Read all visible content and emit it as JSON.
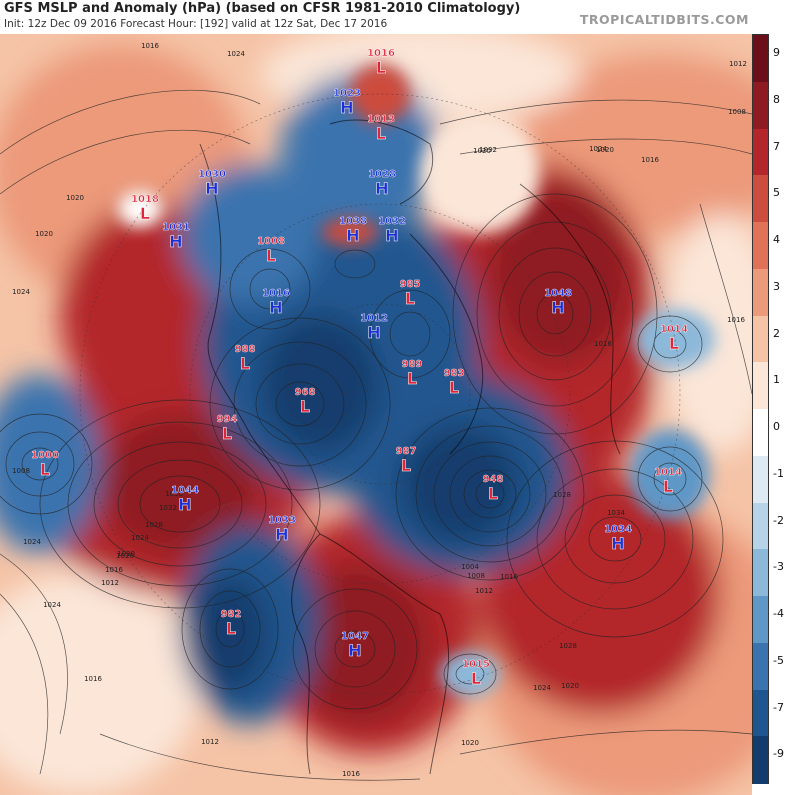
{
  "header": {
    "title": "GFS MSLP and Anomaly (hPa) (based on CFSR 1981-2010 Climatology)",
    "subtitle": "Init: 12z Dec 09 2016   Forecast Hour: [192]   valid at 12z Sat, Dec 17 2016",
    "brand": "TROPICALTIDBITS.COM"
  },
  "colorbar": {
    "labels": [
      "9",
      "8",
      "7",
      "5",
      "4",
      "3",
      "2",
      "1",
      "0",
      "-1",
      "-2",
      "-3",
      "-4",
      "-5",
      "-7",
      "-9"
    ],
    "colors": [
      "#6b0f1a",
      "#8e1a22",
      "#b3262b",
      "#cc4c3e",
      "#df7257",
      "#ec9a7a",
      "#f5c3a6",
      "#fbe6d8",
      "#ffffff",
      "#dde9f3",
      "#b7d3e8",
      "#8cb8d9",
      "#5f97c7",
      "#3a73ae",
      "#20568f",
      "#123c6d"
    ]
  },
  "pressure_centers": [
    {
      "type": "H",
      "value": "1023",
      "color": "#1c2fd6"
    },
    {
      "type": "L",
      "value": "1016",
      "color": "#e0253a"
    },
    {
      "type": "L",
      "value": "1013",
      "color": "#e0253a"
    },
    {
      "type": "H",
      "value": "1030",
      "color": "#1c2fd6"
    },
    {
      "type": "H",
      "value": "1028",
      "color": "#1c2fd6"
    },
    {
      "type": "L",
      "value": "1018",
      "color": "#e0253a"
    },
    {
      "type": "H",
      "value": "1031",
      "color": "#1c2fd6"
    },
    {
      "type": "L",
      "value": "1008",
      "color": "#e0253a"
    },
    {
      "type": "H",
      "value": "1038",
      "color": "#1c2fd6"
    },
    {
      "type": "H",
      "value": "1032",
      "color": "#1c2fd6"
    },
    {
      "type": "H",
      "value": "1016",
      "color": "#1c2fd6"
    },
    {
      "type": "L",
      "value": "985",
      "color": "#e0253a"
    },
    {
      "type": "H",
      "value": "1048",
      "color": "#1c2fd6"
    },
    {
      "type": "H",
      "value": "1012",
      "color": "#1c2fd6"
    },
    {
      "type": "L",
      "value": "988",
      "color": "#e0253a"
    },
    {
      "type": "L",
      "value": "989",
      "color": "#e0253a"
    },
    {
      "type": "L",
      "value": "983",
      "color": "#e0253a"
    },
    {
      "type": "L",
      "value": "1014",
      "color": "#e0253a"
    },
    {
      "type": "L",
      "value": "968",
      "color": "#e0253a"
    },
    {
      "type": "L",
      "value": "994",
      "color": "#e0253a"
    },
    {
      "type": "L",
      "value": "1000",
      "color": "#e0253a"
    },
    {
      "type": "L",
      "value": "987",
      "color": "#e0253a"
    },
    {
      "type": "L",
      "value": "948",
      "color": "#e0253a"
    },
    {
      "type": "L",
      "value": "1014",
      "color": "#e0253a"
    },
    {
      "type": "H",
      "value": "1044",
      "color": "#1c2fd6"
    },
    {
      "type": "H",
      "value": "1033",
      "color": "#1c2fd6"
    },
    {
      "type": "H",
      "value": "1034",
      "color": "#1c2fd6"
    },
    {
      "type": "L",
      "value": "982",
      "color": "#e0253a"
    },
    {
      "type": "H",
      "value": "1047",
      "color": "#1c2fd6"
    },
    {
      "type": "L",
      "value": "1015",
      "color": "#e0253a"
    }
  ],
  "isobar_labels": [
    "1016",
    "1024",
    "1020",
    "1016",
    "1012",
    "1008",
    "1016",
    "1020",
    "1024",
    "1020",
    "1032",
    "1028",
    "1034",
    "1016",
    "1016",
    "1020",
    "1024",
    "1008",
    "1036",
    "1032",
    "1028",
    "1024",
    "1020",
    "1016",
    "1012",
    "1004",
    "1008",
    "1012",
    "1016",
    "1020",
    "1024",
    "1020",
    "1024",
    "1012",
    "1016",
    "1028",
    "1024",
    "1020",
    "1016"
  ]
}
